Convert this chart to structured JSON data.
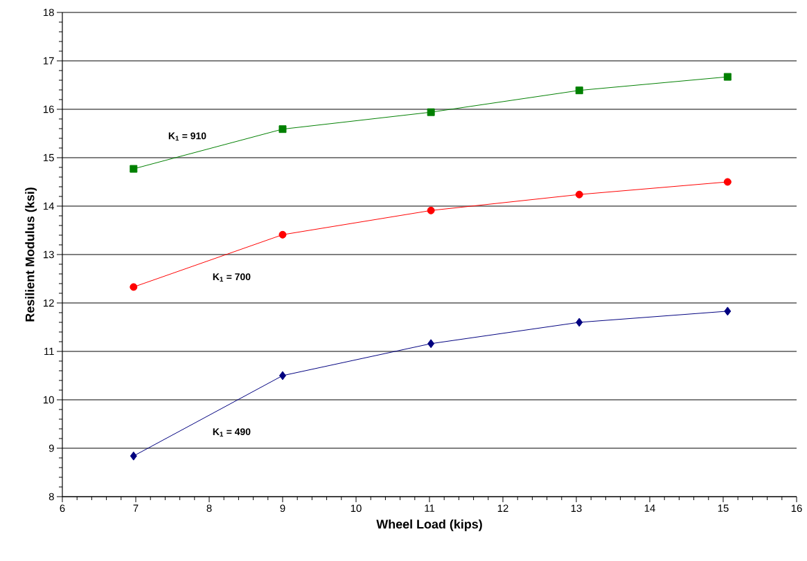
{
  "chart_data": {
    "type": "line",
    "xlabel": "Wheel Load (kips)",
    "ylabel": "Resilient Modulus (ksi)",
    "series": [
      {
        "name": "K$_{1}$ = 910",
        "color": "#008000",
        "marker": "square",
        "x": [
          6.97,
          9.0,
          11.02,
          13.04,
          15.06
        ],
        "values": [
          14.77,
          15.59,
          15.94,
          16.39,
          16.67
        ]
      },
      {
        "name": "K$_{1}$ = 700",
        "color": "#ff0000",
        "marker": "circle",
        "x": [
          6.97,
          9.0,
          11.02,
          13.04,
          15.06
        ],
        "values": [
          12.33,
          13.41,
          13.91,
          14.24,
          14.5
        ]
      },
      {
        "name": "K$_{1}$ = 490",
        "color": "#000080",
        "marker": "diamond",
        "x": [
          6.97,
          9.0,
          11.02,
          13.04,
          15.06
        ],
        "values": [
          8.84,
          10.5,
          11.16,
          11.6,
          11.83
        ]
      }
    ],
    "xlim": [
      6,
      16
    ],
    "ylim": [
      8,
      18
    ],
    "xticks": [
      6,
      7,
      8,
      9,
      10,
      11,
      12,
      13,
      14,
      15,
      16
    ],
    "yticks": [
      8,
      9,
      10,
      11,
      12,
      13,
      14,
      15,
      16,
      17,
      18
    ],
    "grid": "y",
    "line_style": "solid"
  }
}
